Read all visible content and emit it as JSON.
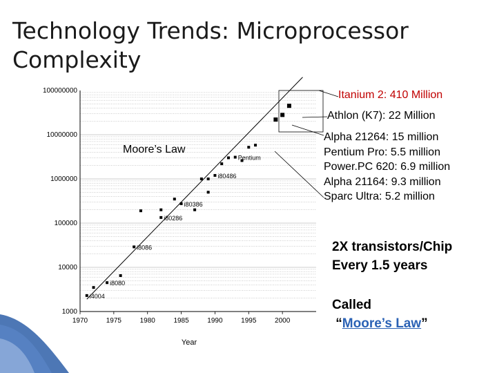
{
  "slide": {
    "title": "Technology Trends: Microprocessor Complexity",
    "annotations": {
      "itanium": "Itanium 2: 410 Million",
      "athlon": "Athlon (K7): 22 Million",
      "cpu_list": [
        "Alpha 21264: 15 million",
        "Pentium Pro: 5.5 million",
        "Power.PC 620: 6.9 million",
        "Alpha 21164: 9.3 million",
        "Sparc Ultra: 5.2 million"
      ],
      "moores_law_label": "Moore’s Law",
      "claim_line1": "2X transistors/Chip",
      "claim_line2": "Every 1.5 years",
      "called_prefix": "Called",
      "called_open_quote": "“",
      "called_link": "Moore’s Law",
      "called_close_quote": "”"
    },
    "colors": {
      "accent_red": "#c00000",
      "link_blue": "#2b62b5",
      "decor_blue": "#2e5fa8"
    }
  },
  "chart_data": {
    "type": "scatter",
    "xlabel": "Year",
    "ylabel": "",
    "x_ticks": [
      1970,
      1975,
      1980,
      1985,
      1990,
      1995,
      2000
    ],
    "y_ticks": [
      1000,
      10000,
      100000,
      1000000,
      10000000,
      100000000
    ],
    "y_tick_labels": [
      "1000",
      "10000",
      "100000",
      "1000000",
      "10000000",
      "100000000"
    ],
    "xlim": [
      1970,
      2005
    ],
    "ylim": [
      1000,
      100000000
    ],
    "y_scale": "log",
    "grid": true,
    "trend_line": {
      "label": "Moore’s Law",
      "from": [
        1971,
        1900
      ],
      "to": [
        2003,
        200000000
      ]
    },
    "points": [
      {
        "x": 1971,
        "y": 2300,
        "label": "i4004"
      },
      {
        "x": 1972,
        "y": 3500,
        "label": ""
      },
      {
        "x": 1974,
        "y": 4500,
        "label": "i8080"
      },
      {
        "x": 1976,
        "y": 6500,
        "label": ""
      },
      {
        "x": 1978,
        "y": 29000,
        "label": "i8086"
      },
      {
        "x": 1979,
        "y": 190000,
        "label": ""
      },
      {
        "x": 1982,
        "y": 134000,
        "label": "i80286"
      },
      {
        "x": 1982,
        "y": 200000,
        "label": ""
      },
      {
        "x": 1984,
        "y": 350000,
        "label": ""
      },
      {
        "x": 1985,
        "y": 275000,
        "label": "i80386"
      },
      {
        "x": 1987,
        "y": 200000,
        "label": ""
      },
      {
        "x": 1988,
        "y": 1000000,
        "label": ""
      },
      {
        "x": 1989,
        "y": 500000,
        "label": ""
      },
      {
        "x": 1989,
        "y": 1000000,
        "label": ""
      },
      {
        "x": 1990,
        "y": 1200000,
        "label": "i80486"
      },
      {
        "x": 1991,
        "y": 2200000,
        "label": ""
      },
      {
        "x": 1992,
        "y": 3000000,
        "label": ""
      },
      {
        "x": 1993,
        "y": 3100000,
        "label": "Pentium"
      },
      {
        "x": 1994,
        "y": 2600000,
        "label": ""
      },
      {
        "x": 1995,
        "y": 5200000,
        "label": ""
      },
      {
        "x": 1996,
        "y": 5800000,
        "label": ""
      },
      {
        "x": 1999,
        "y": 22000000,
        "label": ""
      },
      {
        "x": 2000,
        "y": 28000000,
        "label": ""
      },
      {
        "x": 2001,
        "y": 45000000,
        "label": ""
      }
    ]
  }
}
